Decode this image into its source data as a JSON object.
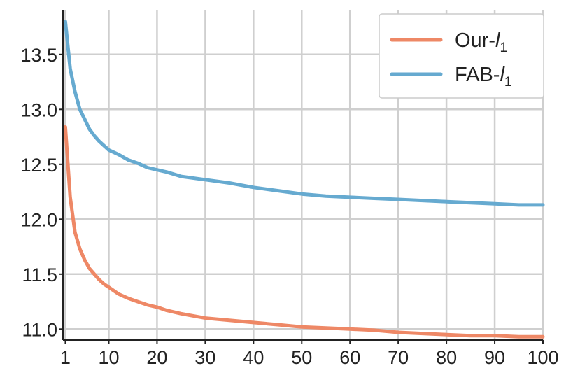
{
  "chart_data": {
    "type": "line",
    "title": "",
    "xlabel": "",
    "ylabel": "",
    "xlim": [
      0.5,
      100
    ],
    "ylim": [
      10.9,
      13.9
    ],
    "grid": true,
    "legend_position": "top-right",
    "x_ticks": [
      1,
      10,
      20,
      30,
      40,
      50,
      60,
      70,
      80,
      90,
      100
    ],
    "x_tick_labels": [
      "1",
      "10",
      "20",
      "30",
      "40",
      "50",
      "60",
      "70",
      "80",
      "90",
      "100"
    ],
    "y_ticks": [
      11.0,
      11.5,
      12.0,
      12.5,
      13.0,
      13.5
    ],
    "y_tick_labels": [
      "11.0",
      "11.5",
      "12.0",
      "12.5",
      "13.0",
      "13.5"
    ],
    "series": [
      {
        "name": "Our-",
        "name_sub_label": "l",
        "name_subscript": "1",
        "color": "#ee8866",
        "x": [
          1,
          2,
          3,
          4,
          5,
          6,
          7,
          8,
          9,
          10,
          12,
          14,
          16,
          18,
          20,
          22,
          25,
          30,
          35,
          40,
          45,
          50,
          55,
          60,
          65,
          70,
          75,
          80,
          85,
          90,
          95,
          100
        ],
        "values": [
          12.84,
          12.2,
          11.88,
          11.73,
          11.63,
          11.55,
          11.5,
          11.45,
          11.41,
          11.38,
          11.32,
          11.28,
          11.25,
          11.22,
          11.2,
          11.17,
          11.14,
          11.1,
          11.08,
          11.06,
          11.04,
          11.02,
          11.01,
          11.0,
          10.99,
          10.97,
          10.96,
          10.95,
          10.94,
          10.94,
          10.93,
          10.93
        ]
      },
      {
        "name": "FAB-",
        "name_sub_label": "l",
        "name_subscript": "1",
        "color": "#66aad0",
        "x": [
          1,
          2,
          3,
          4,
          5,
          6,
          7,
          8,
          9,
          10,
          12,
          14,
          16,
          18,
          20,
          22,
          25,
          30,
          35,
          40,
          45,
          50,
          55,
          60,
          65,
          70,
          75,
          80,
          85,
          90,
          95,
          100
        ],
        "values": [
          13.8,
          13.37,
          13.16,
          13.0,
          12.91,
          12.82,
          12.76,
          12.71,
          12.67,
          12.63,
          12.59,
          12.54,
          12.51,
          12.47,
          12.45,
          12.43,
          12.39,
          12.36,
          12.33,
          12.29,
          12.26,
          12.23,
          12.21,
          12.2,
          12.19,
          12.18,
          12.17,
          12.16,
          12.15,
          12.14,
          12.13,
          12.13
        ]
      }
    ]
  }
}
